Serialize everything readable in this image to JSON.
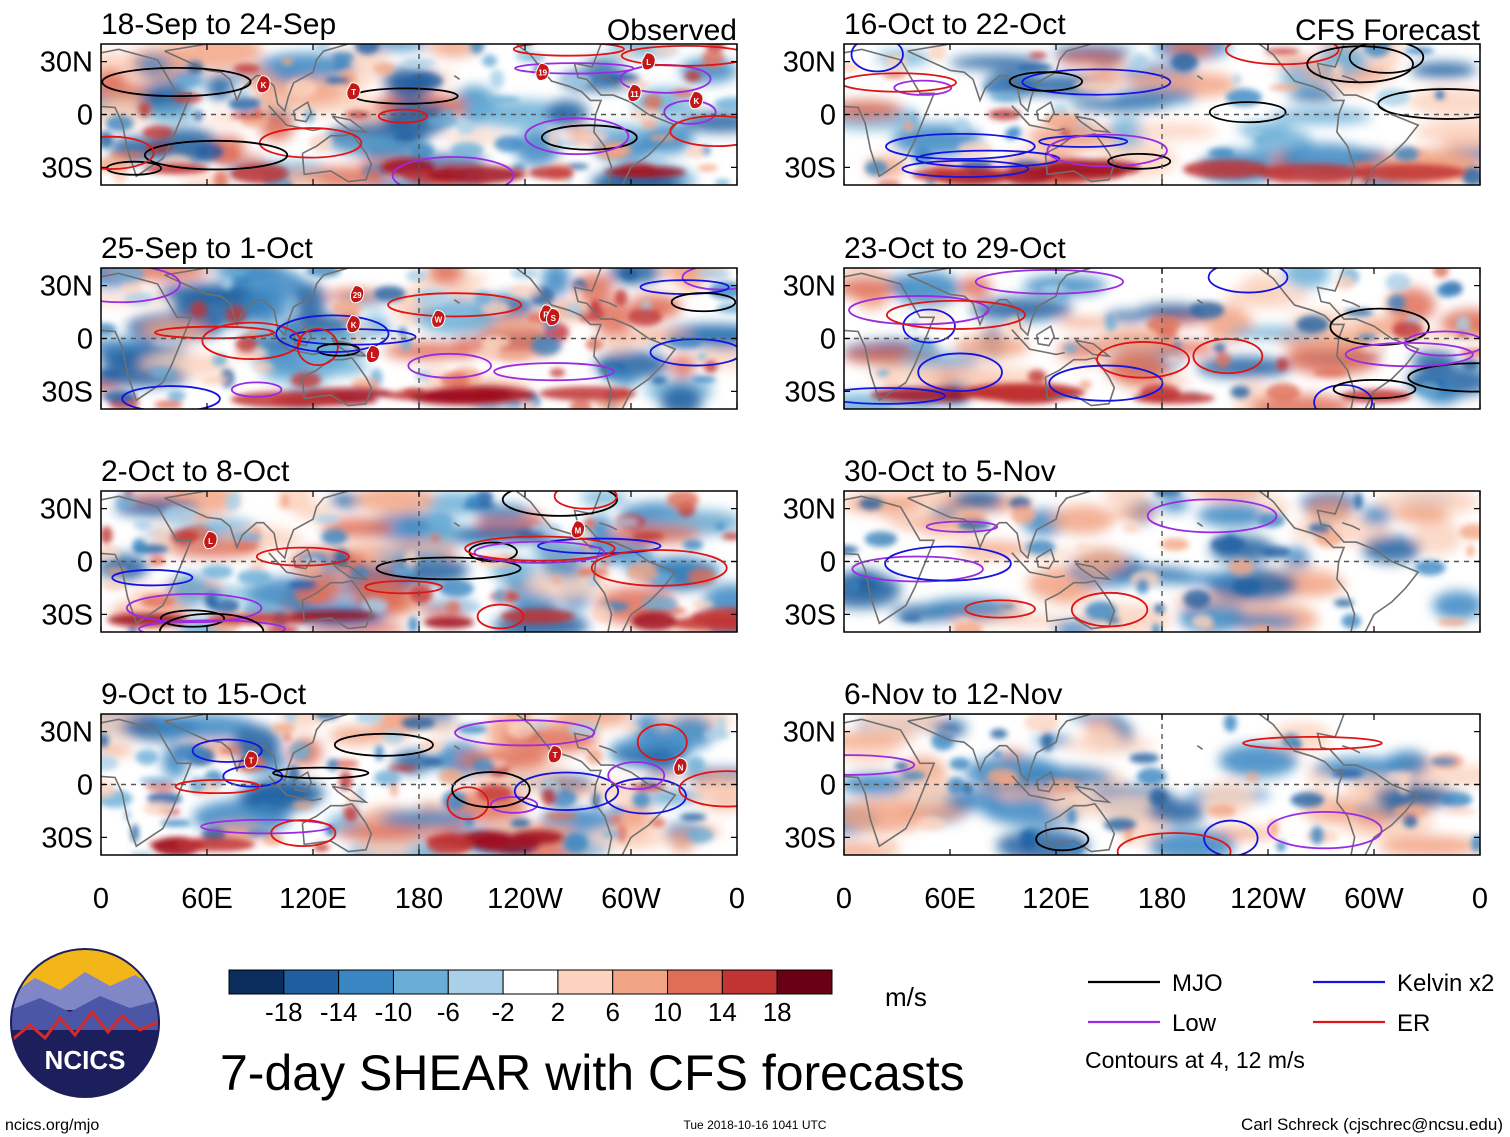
{
  "title": "7-day SHEAR with CFS forecasts",
  "logo_text": "NCICS",
  "footer": {
    "left": "ncics.org/mjo",
    "center": "Tue 2018-10-16 1041 UTC",
    "right": "Carl Schreck (cjschrec@ncsu.edu)"
  },
  "chart_data": {
    "type": "heatmap",
    "units": "m/s",
    "observed_label": "Observed",
    "forecast_label": "CFS Forecast",
    "x_ticks": [
      "0",
      "60E",
      "120E",
      "180",
      "120W",
      "60W",
      "0"
    ],
    "y_ticks": [
      "30N",
      "0",
      "30S"
    ],
    "colorbar": {
      "labels": [
        "-18",
        "-14",
        "-10",
        "-6",
        "-2",
        "2",
        "6",
        "10",
        "14",
        "18"
      ],
      "colors": [
        "#0b2e5e",
        "#1f5fa0",
        "#3a86c2",
        "#6aaed6",
        "#a9d0e8",
        "#e1eef6",
        "#ffffff",
        "#fbd3bf",
        "#f2a585",
        "#e06e57",
        "#c13434",
        "#a01020",
        "#690015"
      ]
    },
    "contour_note": "Contours at 4, 12 m/s",
    "legend": [
      {
        "label": "MJO",
        "color": "#000000"
      },
      {
        "label": "Kelvin x2",
        "color": "#1414e0"
      },
      {
        "label": "Low",
        "color": "#9a2be2"
      },
      {
        "label": "ER",
        "color": "#e01414"
      }
    ],
    "panels": [
      {
        "period": "18-Sep to 24-Sep",
        "column": "observed",
        "storms": [
          {
            "id": "K",
            "lon": 92,
            "lat": 17
          },
          {
            "id": "T",
            "lon": 143,
            "lat": 13
          },
          {
            "id": "19",
            "lon": 250,
            "lat": 24
          },
          {
            "id": "L",
            "lon": 310,
            "lat": 30
          },
          {
            "id": "11",
            "lon": 302,
            "lat": 12
          },
          {
            "id": "K",
            "lon": 337,
            "lat": 8
          }
        ]
      },
      {
        "period": "25-Sep to 1-Oct",
        "column": "observed",
        "storms": [
          {
            "id": "29",
            "lon": 145,
            "lat": 25
          },
          {
            "id": "K",
            "lon": 143,
            "lat": 8
          },
          {
            "id": "W",
            "lon": 191,
            "lat": 11
          },
          {
            "id": "R",
            "lon": 252,
            "lat": 14
          },
          {
            "id": "S",
            "lon": 256,
            "lat": 12
          },
          {
            "id": "L",
            "lon": 154,
            "lat": -9
          }
        ]
      },
      {
        "period": "2-Oct to 8-Oct",
        "column": "observed",
        "storms": [
          {
            "id": "L",
            "lon": 62,
            "lat": 12
          },
          {
            "id": "M",
            "lon": 270,
            "lat": 18
          }
        ]
      },
      {
        "period": "9-Oct to 15-Oct",
        "column": "observed",
        "storms": [
          {
            "id": "T",
            "lon": 85,
            "lat": 14
          },
          {
            "id": "T",
            "lon": 257,
            "lat": 17
          },
          {
            "id": "N",
            "lon": 328,
            "lat": 10
          }
        ]
      },
      {
        "period": "16-Oct to 22-Oct",
        "column": "forecast",
        "storms": []
      },
      {
        "period": "23-Oct to 29-Oct",
        "column": "forecast",
        "storms": []
      },
      {
        "period": "30-Oct to 5-Nov",
        "column": "forecast",
        "storms": []
      },
      {
        "period": "6-Nov to 12-Nov",
        "column": "forecast",
        "storms": []
      }
    ]
  }
}
